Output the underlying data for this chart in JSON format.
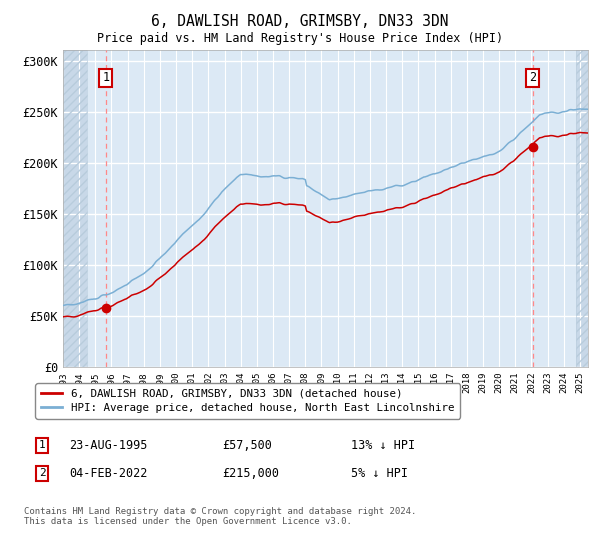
{
  "title": "6, DAWLISH ROAD, GRIMSBY, DN33 3DN",
  "subtitle": "Price paid vs. HM Land Registry's House Price Index (HPI)",
  "ylim": [
    0,
    310000
  ],
  "yticks": [
    0,
    50000,
    100000,
    150000,
    200000,
    250000,
    300000
  ],
  "ytick_labels": [
    "£0",
    "£50K",
    "£100K",
    "£150K",
    "£200K",
    "£250K",
    "£300K"
  ],
  "hpi_color": "#7bafd4",
  "price_color": "#cc0000",
  "bg_color": "#dce9f5",
  "hatch_color": "#c8d8e8",
  "grid_color": "#ffffff",
  "marker_color": "#cc0000",
  "dashed_line_color": "#ff8888",
  "sale1_date": "23-AUG-1995",
  "sale1_price": 57500,
  "sale1_price_str": "£57,500",
  "sale1_hpi_pct": "13% ↓ HPI",
  "sale2_date": "04-FEB-2022",
  "sale2_price": 215000,
  "sale2_price_str": "£215,000",
  "sale2_hpi_pct": "5% ↓ HPI",
  "legend_label1": "6, DAWLISH ROAD, GRIMSBY, DN33 3DN (detached house)",
  "legend_label2": "HPI: Average price, detached house, North East Lincolnshire",
  "footnote": "Contains HM Land Registry data © Crown copyright and database right 2024.\nThis data is licensed under the Open Government Licence v3.0.",
  "sale1_x": 1995.65,
  "sale2_x": 2022.09,
  "xmin": 1993.0,
  "xmax": 2025.5,
  "hatch_left_end": 1994.5,
  "hatch_right_start": 2024.75
}
